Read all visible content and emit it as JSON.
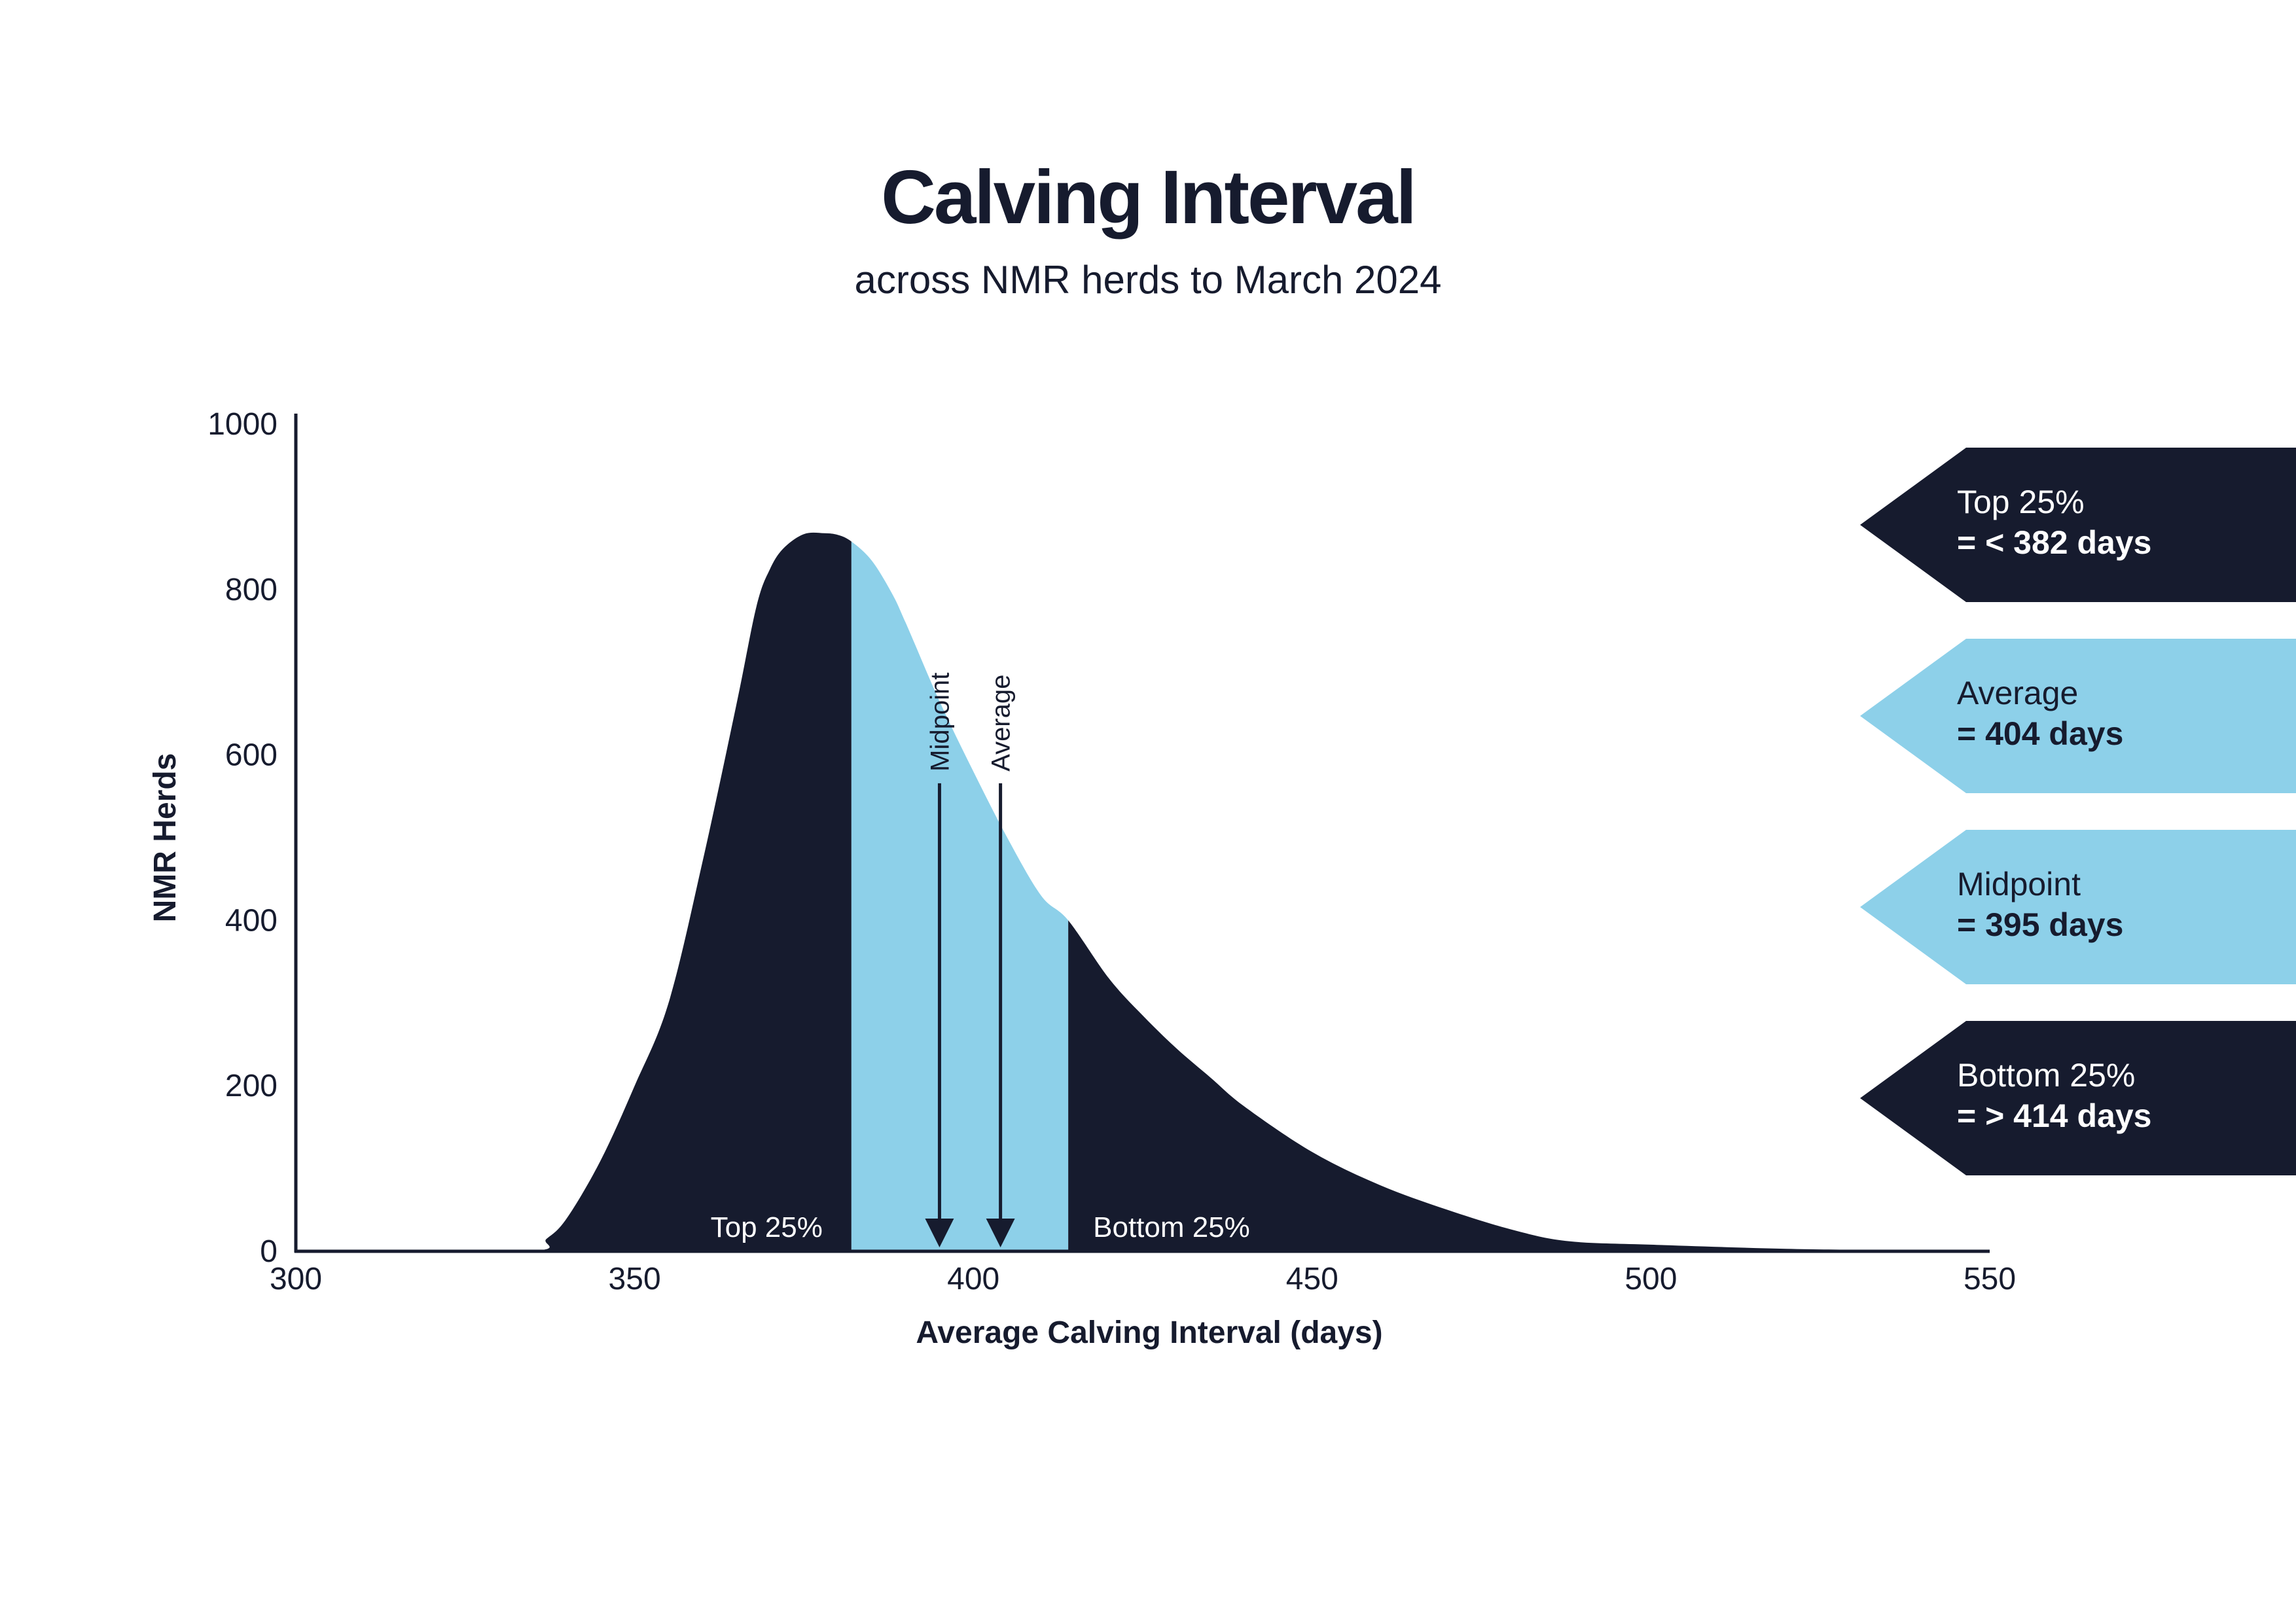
{
  "title": "Calving Interval",
  "subtitle": "across NMR herds to March 2024",
  "colors": {
    "navy": "#161b2e",
    "light_blue": "#8dd0e9",
    "white": "#ffffff"
  },
  "chart_data": {
    "type": "area",
    "xlabel": "Average Calving Interval (days)",
    "ylabel": "NMR Herds",
    "xlim": [
      300,
      550
    ],
    "ylim": [
      0,
      1000
    ],
    "x_ticks": [
      "300",
      "350",
      "400",
      "450",
      "500",
      "550"
    ],
    "y_ticks": [
      "0",
      "200",
      "400",
      "600",
      "800",
      "1000"
    ],
    "grid": false,
    "distribution": {
      "x": [
        300,
        334,
        337,
        340,
        345,
        350,
        355,
        360,
        365,
        368,
        370,
        372,
        375,
        378,
        380,
        382,
        385,
        388,
        390,
        395,
        400,
        405,
        410,
        414,
        420,
        425,
        430,
        435,
        440,
        450,
        460,
        470,
        480,
        488,
        500,
        520,
        540,
        550
      ],
      "y": [
        0,
        0,
        15,
        40,
        110,
        200,
        300,
        470,
        660,
        780,
        825,
        850,
        867,
        868,
        866,
        858,
        835,
        795,
        760,
        665,
        580,
        500,
        430,
        400,
        330,
        285,
        245,
        210,
        175,
        120,
        80,
        50,
        25,
        12,
        8,
        3,
        1,
        0
      ]
    },
    "regions": [
      {
        "label": "Top 25%",
        "from": 300,
        "to": 382,
        "color": "#161b2e"
      },
      {
        "label": "",
        "from": 382,
        "to": 414,
        "color": "#8dd0e9"
      },
      {
        "label": "Bottom 25%",
        "from": 414,
        "to": 550,
        "color": "#161b2e"
      }
    ],
    "markers": [
      {
        "label": "Midpoint",
        "x": 395,
        "y_top": 580
      },
      {
        "label": "Average",
        "x": 404,
        "y_top": 580
      }
    ],
    "callouts": [
      {
        "line1": "Top 25%",
        "line2": "= < 382 days",
        "fill": "#161b2e",
        "text_color": "#ffffff"
      },
      {
        "line1": "Average",
        "line2": "= 404 days",
        "fill": "#8dd0e9",
        "text_color": "#161b2e"
      },
      {
        "line1": "Midpoint",
        "line2": "= 395 days",
        "fill": "#8dd0e9",
        "text_color": "#161b2e"
      },
      {
        "line1": "Bottom 25%",
        "line2": "= > 414 days",
        "fill": "#161b2e",
        "text_color": "#ffffff"
      }
    ]
  }
}
